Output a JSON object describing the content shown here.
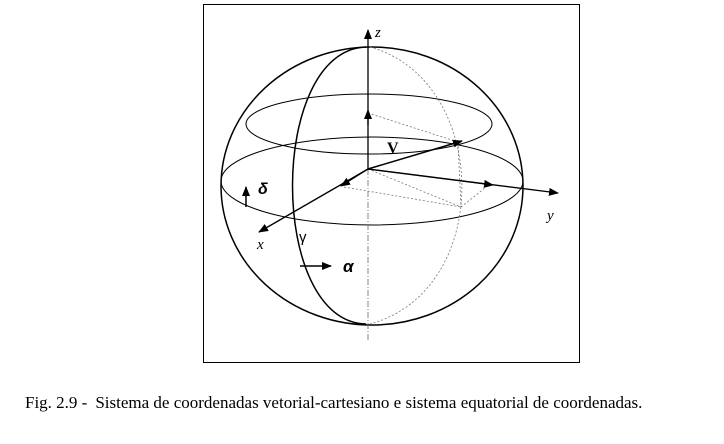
{
  "figure": {
    "axis_z": "z",
    "axis_x": "x",
    "axis_y": "y",
    "vector": "V",
    "delta": "δ",
    "gamma": "γ",
    "alpha": "α"
  },
  "caption": {
    "number": "Fig. 2.9 -",
    "text": "Sistema de coordenadas vetorial-cartesiano e sistema equatorial de coordenadas."
  }
}
